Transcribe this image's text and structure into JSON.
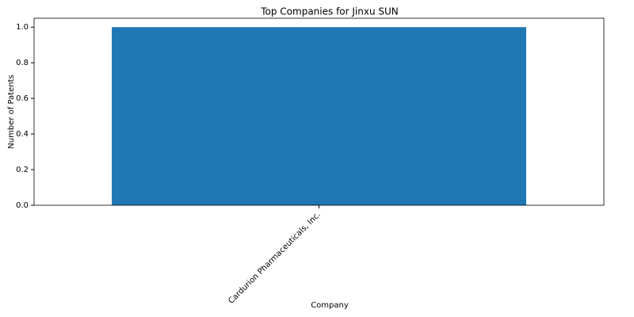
{
  "chart_data": {
    "type": "bar",
    "title": "Top Companies for Jinxu SUN",
    "x_label": "Company",
    "y_label": "Number of Patents",
    "categories": [
      "Cardurion Pharmaceuticals, Inc."
    ],
    "values": [
      1
    ],
    "color": "#1f77b4",
    "ylim": [
      0,
      1.05
    ],
    "yticks": [
      {
        "value": 0,
        "label": "0.0"
      },
      0.2,
      0.4,
      0.6,
      0.8,
      {
        "value": 1,
        "label": "1.0"
      }
    ],
    "grid": false
  }
}
